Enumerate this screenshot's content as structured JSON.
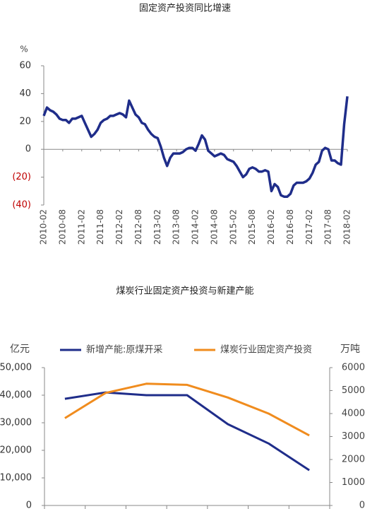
{
  "chart_data": [
    {
      "type": "line",
      "title": "固定资产投资同比增速",
      "y_label": "%",
      "categories": [
        "2010-02",
        null,
        null,
        null,
        null,
        null,
        "2010-08",
        null,
        null,
        null,
        null,
        null,
        "2011-02",
        null,
        null,
        null,
        null,
        null,
        "2011-08",
        null,
        null,
        null,
        null,
        null,
        "2012-02",
        null,
        null,
        null,
        null,
        null,
        "2012-08",
        null,
        null,
        null,
        null,
        null,
        "2013-02",
        null,
        null,
        null,
        null,
        null,
        "2013-08",
        null,
        null,
        null,
        null,
        null,
        "2014-02",
        null,
        null,
        null,
        null,
        null,
        "2014-08",
        null,
        null,
        null,
        null,
        null,
        "2015-02",
        null,
        null,
        null,
        null,
        null,
        "2015-08",
        null,
        null,
        null,
        null,
        null,
        "2016-02",
        null,
        null,
        null,
        null,
        null,
        "2016-08",
        null,
        null,
        null,
        null,
        null,
        "2017-02",
        null,
        null,
        null,
        null,
        null,
        "2017-08",
        null,
        null,
        null,
        null,
        null,
        "2018-02"
      ],
      "series": [
        {
          "name": null,
          "color": "#1f2d8a",
          "values": [
            24,
            30,
            28,
            27,
            25,
            22,
            21,
            21,
            19,
            22,
            22,
            23,
            24,
            19,
            14,
            9,
            11,
            14,
            19,
            21,
            22,
            24,
            24,
            25,
            26,
            25,
            23,
            35,
            30,
            25,
            23,
            19,
            18,
            14,
            11,
            9,
            8,
            2,
            -6,
            -12,
            -6,
            -3,
            -3,
            -3,
            -2,
            0,
            1,
            1,
            -1,
            4,
            10,
            7,
            -1,
            -3,
            -5,
            -4,
            -3,
            -4,
            -7,
            -8,
            -9,
            -12,
            -16,
            -20,
            -18,
            -14,
            -13,
            -14,
            -16,
            -16,
            -15,
            -16,
            -30,
            -25,
            -27,
            -33,
            -34,
            -34,
            -32,
            -26,
            -24,
            -24,
            -24,
            -23,
            -21,
            -17,
            -11,
            -9,
            -1,
            1,
            0,
            -8,
            -8,
            -10,
            -11,
            18,
            38
          ]
        }
      ],
      "ylim": [
        -40,
        60
      ],
      "yticks": [
        60,
        40,
        20,
        0,
        {
          "value": -20,
          "label": "(20)"
        },
        {
          "value": -40,
          "label": "(40)"
        }
      ],
      "negative_tick_color": "#c00000"
    },
    {
      "type": "line",
      "title": "煤炭行业固定资产投资与新建产能",
      "y_label": "亿元",
      "y2_label": "万吨",
      "categories": [
        null,
        null,
        null,
        null,
        null,
        null,
        null
      ],
      "series": [
        {
          "name": "新增产能:原煤开采",
          "color": "#1f2d8a",
          "values": [
            38700,
            41000,
            40000,
            40000,
            29500,
            22500,
            12800
          ]
        },
        {
          "name": "煤炭行业固定资产投资",
          "color": "#f08c1e",
          "axis": "y2",
          "values": [
            3800,
            4900,
            5300,
            5250,
            4700,
            4000,
            3050
          ]
        }
      ],
      "ylim": [
        0,
        50000
      ],
      "yticks": [
        0,
        {
          "value": 10000,
          "label": "10,000"
        },
        {
          "value": 20000,
          "label": "20,000"
        },
        {
          "value": 30000,
          "label": "30,000"
        },
        {
          "value": 40000,
          "label": "40,000"
        },
        {
          "value": 50000,
          "label": "50,000"
        }
      ],
      "y2lim": [
        0,
        6000
      ],
      "y2ticks": [
        0,
        1000,
        2000,
        3000,
        4000,
        5000,
        6000
      ]
    }
  ]
}
